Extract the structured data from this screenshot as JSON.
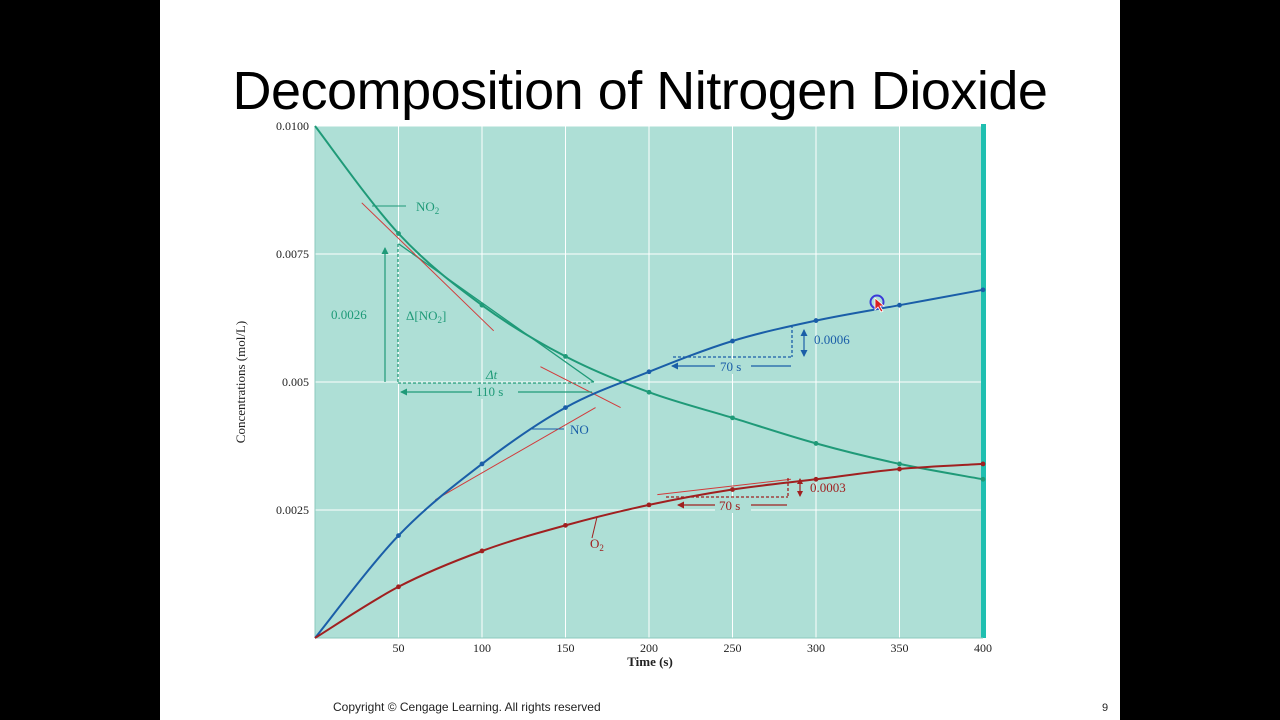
{
  "slide": {
    "title": "Decomposition of Nitrogen Dioxide",
    "copyright": "Copyright © Cengage Learning. All rights reserved",
    "page_number": "9"
  },
  "chart_data": {
    "type": "line",
    "xlabel": "Time (s)",
    "ylabel": "Concentrations (mol/L)",
    "xlim": [
      0,
      400
    ],
    "ylim": [
      0,
      0.01
    ],
    "x_ticks": [
      50,
      100,
      150,
      200,
      250,
      300,
      350,
      400
    ],
    "x_tick_labels": [
      "50",
      "100",
      "150",
      "200",
      "250",
      "300",
      "350",
      "400"
    ],
    "y_ticks": [
      0.0025,
      0.005,
      0.0075,
      0.01
    ],
    "y_tick_labels": [
      "0.0025",
      "0.005",
      "0.0075",
      "0.0100"
    ],
    "grid": true,
    "colors": {
      "plot_background": "#aedfd6",
      "grid": "#ffffff",
      "right_edge": "#1fbfb0",
      "tangent": "#d23a3a"
    },
    "series": [
      {
        "name": "NO2",
        "label_main": "NO",
        "label_sub": "2",
        "color": "#1f9a78",
        "x": [
          0,
          50,
          100,
          150,
          200,
          250,
          300,
          350,
          400
        ],
        "y": [
          0.01,
          0.0079,
          0.0065,
          0.0055,
          0.0048,
          0.0043,
          0.0038,
          0.0034,
          0.0031
        ]
      },
      {
        "name": "NO",
        "label_main": "NO",
        "label_sub": "",
        "color": "#1a5ea8",
        "x": [
          0,
          50,
          100,
          150,
          200,
          250,
          300,
          350,
          400
        ],
        "y": [
          0,
          0.002,
          0.0034,
          0.0045,
          0.0052,
          0.0058,
          0.0062,
          0.0065,
          0.0068
        ]
      },
      {
        "name": "O2",
        "label_main": "O",
        "label_sub": "2",
        "color": "#a02020",
        "x": [
          0,
          50,
          100,
          150,
          200,
          250,
          300,
          350,
          400
        ],
        "y": [
          0,
          0.001,
          0.0017,
          0.0022,
          0.0026,
          0.0029,
          0.0031,
          0.0033,
          0.0034
        ]
      }
    ],
    "annotations": {
      "no2_delta_value": "0.0026",
      "no2_delta_label_main": "Δ[NO",
      "no2_delta_label_sub": "2",
      "no2_delta_label_end": "]",
      "no2_dt_label": "Δt",
      "no2_dt_value": "110 s",
      "no_delta_value": "0.0006",
      "no_dt_value": "70 s",
      "o2_delta_value": "0.0003",
      "o2_dt_value": "70 s"
    }
  }
}
